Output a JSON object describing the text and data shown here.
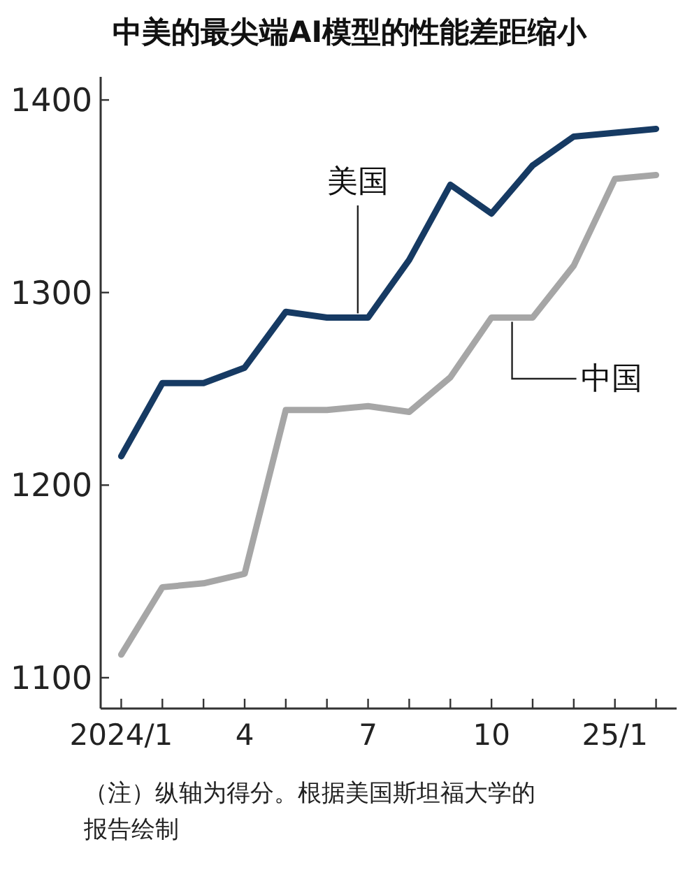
{
  "chart_data": {
    "type": "line",
    "title": "中美的最尖端AI模型的性能差距缩小",
    "categories": [
      "2024/1",
      null,
      null,
      "4",
      null,
      null,
      "7",
      null,
      null,
      "10",
      null,
      null,
      "25/1",
      null
    ],
    "series": [
      {
        "name": "美国",
        "color": "#163a63",
        "values": [
          1215,
          1253,
          1253,
          1261,
          1290,
          1287,
          1287,
          1317,
          1356,
          1341,
          1366,
          1381,
          1383,
          1385
        ]
      },
      {
        "name": "中国",
        "color": "#a6a6a6",
        "values": [
          1112,
          1147,
          1149,
          1154,
          1239,
          1239,
          1241,
          1238,
          1256,
          1287,
          1287,
          1314,
          1359,
          1361
        ]
      }
    ],
    "ylim": [
      1084,
      1412
    ],
    "yticks": [
      1100,
      1200,
      1300,
      1400
    ],
    "grid": false,
    "marker": "none",
    "line_style": "solid",
    "annotations": [
      "（注）纵轴为得分。根据美国斯坦福大学的报告绘制"
    ]
  }
}
